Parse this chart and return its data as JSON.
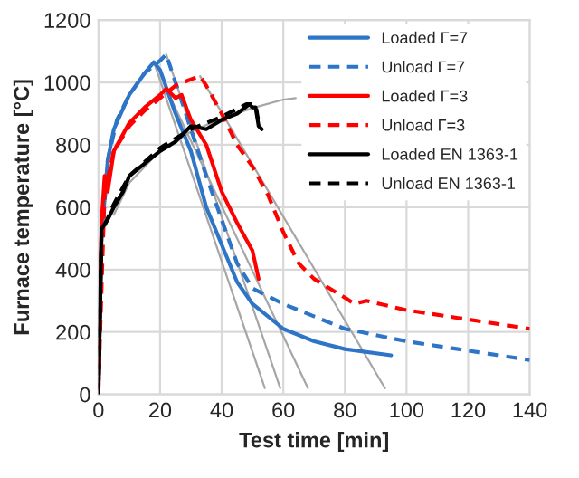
{
  "chart_data": {
    "type": "line",
    "xlabel": "Test time [min]",
    "ylabel": "Furnace temperature [°C]",
    "xlim": [
      0,
      140
    ],
    "xticks": [
      0,
      20,
      40,
      60,
      80,
      100,
      120,
      140
    ],
    "ylim": [
      0,
      1200
    ],
    "yticks": [
      0,
      200,
      400,
      600,
      800,
      1000,
      1200
    ],
    "grid": true,
    "legend": "top right",
    "marker": "none",
    "series": [
      {
        "name": "Loaded Γ=7",
        "color": "#2e75c8",
        "line_style": "solid",
        "x": [
          0,
          1,
          3,
          5,
          10,
          15,
          18,
          20,
          25,
          30,
          35,
          40,
          45,
          50,
          60,
          70,
          80,
          95
        ],
        "values": [
          20,
          500,
          750,
          850,
          960,
          1030,
          1065,
          1040,
          900,
          780,
          600,
          480,
          360,
          290,
          210,
          170,
          145,
          125
        ]
      },
      {
        "name": "Unload Γ=7",
        "color": "#2e75c8",
        "line_style": "dashed",
        "x": [
          0,
          1,
          3,
          6,
          10,
          15,
          20,
          22,
          25,
          30,
          35,
          40,
          45,
          50,
          60,
          80,
          100,
          120,
          140
        ],
        "values": [
          20,
          480,
          750,
          880,
          960,
          1030,
          1070,
          1090,
          1000,
          850,
          700,
          560,
          420,
          340,
          290,
          210,
          170,
          140,
          110
        ]
      },
      {
        "name": "Loaded Γ=3",
        "color": "#ff0000",
        "line_style": "solid",
        "x": [
          0,
          1,
          2,
          3,
          5,
          10,
          15,
          20,
          22,
          25,
          27,
          30,
          35,
          40,
          45,
          50,
          52
        ],
        "values": [
          20,
          550,
          700,
          650,
          780,
          870,
          920,
          960,
          980,
          950,
          960,
          880,
          800,
          650,
          550,
          460,
          370
        ]
      },
      {
        "name": "Unload Γ=3",
        "color": "#ff0000",
        "line_style": "dashed",
        "x": [
          0,
          2,
          5,
          10,
          15,
          20,
          25,
          30,
          33,
          35,
          40,
          45,
          50,
          55,
          60,
          65,
          70,
          80,
          83,
          87,
          100,
          120,
          140
        ],
        "values": [
          20,
          650,
          780,
          860,
          910,
          950,
          990,
          1010,
          1020,
          990,
          900,
          800,
          730,
          640,
          520,
          420,
          370,
          310,
          290,
          300,
          270,
          240,
          210
        ]
      },
      {
        "name": "Loaded EN 1363-1",
        "color": "#000000",
        "line_style": "solid",
        "x": [
          0,
          1,
          3,
          5,
          8,
          10,
          15,
          20,
          25,
          30,
          35,
          40,
          45,
          49,
          50,
          51,
          52,
          53
        ],
        "values": [
          0,
          530,
          560,
          600,
          650,
          700,
          740,
          780,
          810,
          860,
          850,
          880,
          900,
          930,
          920,
          920,
          860,
          850
        ]
      },
      {
        "name": "Unload EN 1363-1",
        "color": "#000000",
        "line_style": "dashed",
        "x": [
          0,
          1,
          5,
          10,
          20,
          30,
          40,
          48,
          51,
          52,
          53
        ],
        "values": [
          0,
          520,
          610,
          700,
          790,
          850,
          890,
          930,
          930,
          870,
          880
        ]
      },
      {
        "color": "#a6a6a6",
        "line_style": "solid",
        "x": [
          5,
          10,
          20,
          30,
          40,
          50,
          60,
          64
        ],
        "values": [
          576,
          678,
          781,
          842,
          885,
          918,
          945,
          950
        ]
      },
      {
        "color": "#a6a6a6",
        "line_style": "solid",
        "x": [
          18,
          54
        ],
        "values": [
          1065,
          20
        ]
      },
      {
        "color": "#a6a6a6",
        "line_style": "solid",
        "x": [
          22,
          59
        ],
        "values": [
          1090,
          20
        ]
      },
      {
        "color": "#a6a6a6",
        "line_style": "solid",
        "x": [
          22,
          68
        ],
        "values": [
          980,
          20
        ]
      },
      {
        "color": "#a6a6a6",
        "line_style": "solid",
        "x": [
          33,
          93
        ],
        "values": [
          1020,
          20
        ]
      }
    ]
  }
}
